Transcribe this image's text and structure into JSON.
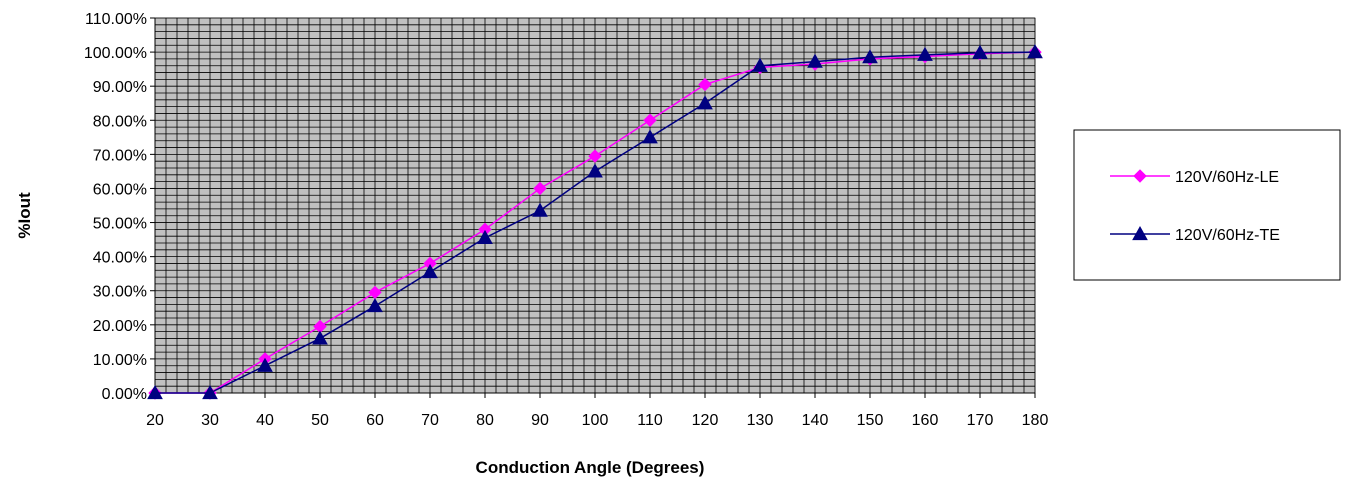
{
  "chart_data": {
    "type": "line",
    "title": "",
    "xlabel": "Conduction Angle (Degrees)",
    "ylabel": "%Iout",
    "x": [
      20,
      30,
      40,
      50,
      60,
      70,
      80,
      90,
      100,
      110,
      120,
      130,
      140,
      150,
      160,
      170,
      180
    ],
    "xticks": [
      "20",
      "30",
      "40",
      "50",
      "60",
      "70",
      "80",
      "90",
      "100",
      "110",
      "120",
      "130",
      "140",
      "150",
      "160",
      "170",
      "180"
    ],
    "ylim": [
      0,
      110
    ],
    "yticks": [
      "0.00%",
      "10.00%",
      "20.00%",
      "30.00%",
      "40.00%",
      "50.00%",
      "60.00%",
      "70.00%",
      "80.00%",
      "90.00%",
      "100.00%",
      "110.00%"
    ],
    "grid": true,
    "legend_position": "right",
    "series": [
      {
        "name": "120V/60Hz-LE",
        "color": "#ff00ff",
        "marker": "diamond",
        "values": [
          0,
          0,
          10,
          19.5,
          29.5,
          38,
          48,
          60,
          69.5,
          80,
          90.5,
          95.5,
          96.5,
          98,
          98.7,
          99.5,
          100
        ]
      },
      {
        "name": "120V/60Hz-TE",
        "color": "#000080",
        "marker": "triangle",
        "values": [
          0,
          0,
          8,
          16,
          25.5,
          35.5,
          45.5,
          53.5,
          65,
          75,
          85,
          96,
          97.2,
          98.5,
          99.2,
          99.8,
          100
        ]
      }
    ],
    "plot_background": "#c0c0c0"
  }
}
